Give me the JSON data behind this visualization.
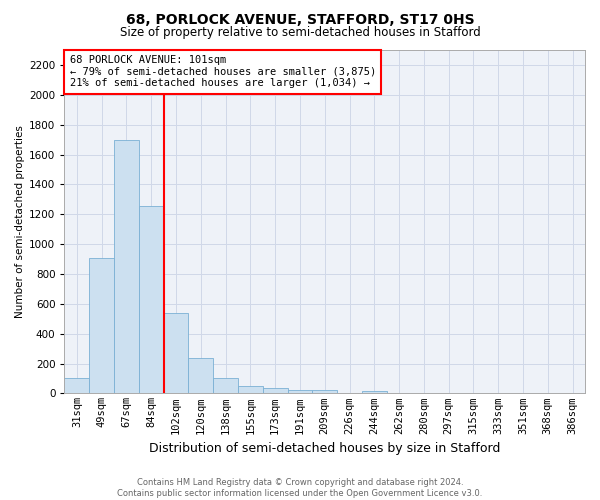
{
  "title1": "68, PORLOCK AVENUE, STAFFORD, ST17 0HS",
  "title2": "Size of property relative to semi-detached houses in Stafford",
  "xlabel": "Distribution of semi-detached houses by size in Stafford",
  "ylabel": "Number of semi-detached properties",
  "footnote": "Contains HM Land Registry data © Crown copyright and database right 2024.\nContains public sector information licensed under the Open Government Licence v3.0.",
  "categories": [
    "31sqm",
    "49sqm",
    "67sqm",
    "84sqm",
    "102sqm",
    "120sqm",
    "138sqm",
    "155sqm",
    "173sqm",
    "191sqm",
    "209sqm",
    "226sqm",
    "244sqm",
    "262sqm",
    "280sqm",
    "297sqm",
    "315sqm",
    "333sqm",
    "351sqm",
    "368sqm",
    "386sqm"
  ],
  "values": [
    100,
    910,
    1700,
    1255,
    540,
    235,
    105,
    50,
    35,
    20,
    20,
    0,
    15,
    0,
    0,
    0,
    0,
    0,
    0,
    0,
    0
  ],
  "bar_color": "#cce0f0",
  "bar_edge_color": "#7ab0d4",
  "grid_color": "#d0d8e8",
  "bg_color": "#eef2f8",
  "vline_color": "red",
  "vline_index": 4,
  "annotation_box_text": "68 PORLOCK AVENUE: 101sqm\n← 79% of semi-detached houses are smaller (3,875)\n21% of semi-detached houses are larger (1,034) →",
  "ylim": [
    0,
    2300
  ],
  "yticks": [
    0,
    200,
    400,
    600,
    800,
    1000,
    1200,
    1400,
    1600,
    1800,
    2000,
    2200
  ],
  "title1_fontsize": 10,
  "title2_fontsize": 8.5,
  "xlabel_fontsize": 9,
  "ylabel_fontsize": 7.5,
  "tick_fontsize": 7.5,
  "footnote_fontsize": 6,
  "ann_fontsize": 7.5
}
